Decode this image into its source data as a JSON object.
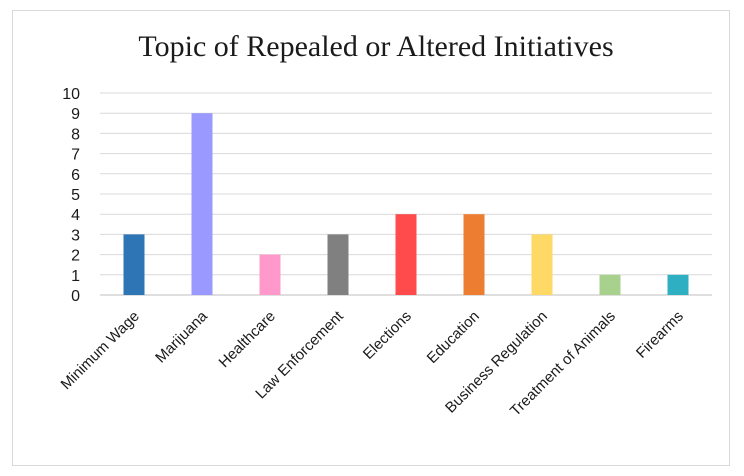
{
  "chart_data": {
    "type": "bar",
    "title": "Topic of Repealed or Altered Initiatives",
    "xlabel": "",
    "ylabel": "",
    "ylim": [
      0,
      10
    ],
    "yticks": [
      0,
      1,
      2,
      3,
      4,
      5,
      6,
      7,
      8,
      9,
      10
    ],
    "grid": true,
    "legend": "none",
    "categories": [
      "Minimum Wage",
      "Marijuana",
      "Healthcare",
      "Law Enforcement",
      "Elections",
      "Education",
      "Business Regulation",
      "Treatment of Animals",
      "Firearms"
    ],
    "values": [
      3,
      9,
      2,
      3,
      4,
      4,
      3,
      1,
      1
    ],
    "colors": [
      "#2e75b6",
      "#9999ff",
      "#ff99cc",
      "#808080",
      "#ff4b4b",
      "#ed7d31",
      "#ffd966",
      "#a9d18e",
      "#2eafc2"
    ]
  }
}
